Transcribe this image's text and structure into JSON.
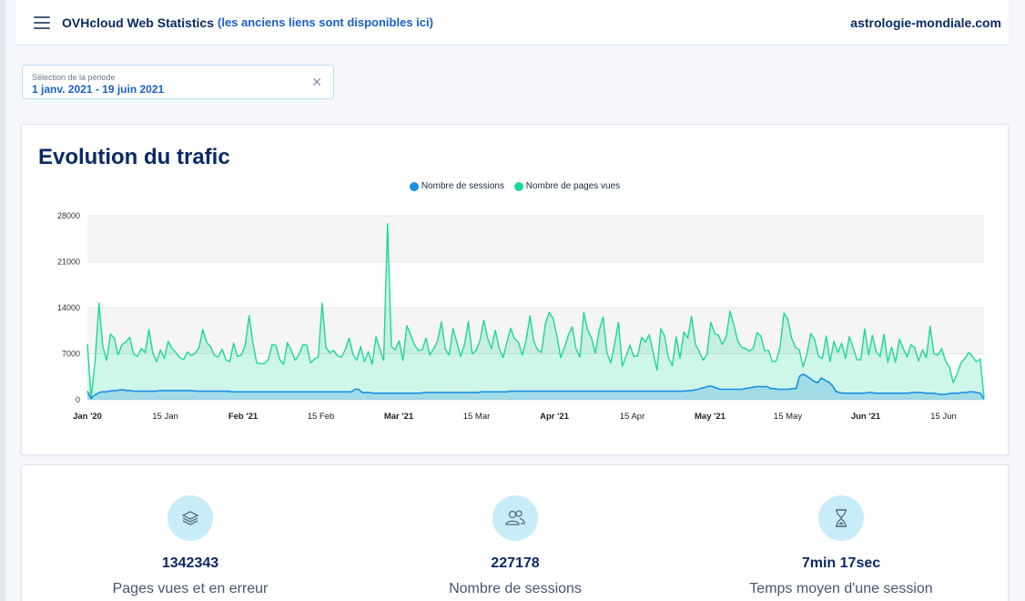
{
  "header": {
    "menu_icon": "hamburger-menu-icon",
    "title": "OVHcloud Web Statistics",
    "legacy_link": "(les anciens liens sont disponibles ici)",
    "site": "astrologie-mondiale.com"
  },
  "period": {
    "label": "Sélection de la période",
    "value": "1 janv. 2021 - 19 juin 2021",
    "clear_icon": "close-icon"
  },
  "chart_data": {
    "type": "area",
    "title": "Evolution du trafic",
    "legend_position": "top-center",
    "grid": true,
    "ylim": [
      0,
      28000
    ],
    "y_ticks": [
      "28000",
      "21000",
      "14000",
      "7000",
      "0"
    ],
    "x_tick_labels": [
      {
        "label": "Jan '20",
        "bold": true
      },
      {
        "label": "15 Jan",
        "bold": false
      },
      {
        "label": "Feb '21",
        "bold": true
      },
      {
        "label": "15 Feb",
        "bold": false
      },
      {
        "label": "Mar '21",
        "bold": true
      },
      {
        "label": "15 Mar",
        "bold": false
      },
      {
        "label": "Apr '21",
        "bold": true
      },
      {
        "label": "15 Apr",
        "bold": false
      },
      {
        "label": "May '21",
        "bold": true
      },
      {
        "label": "15 May",
        "bold": false
      },
      {
        "label": "Jun '21",
        "bold": true
      },
      {
        "label": "15 Jun",
        "bold": false
      }
    ],
    "series": [
      {
        "name": "Nombre de sessions",
        "color": "#1a8fe3",
        "values": [
          1300,
          200,
          700,
          1000,
          1200,
          1200,
          1300,
          1400,
          1400,
          1500,
          1500,
          1400,
          1400,
          1300,
          1300,
          1300,
          1300,
          1300,
          1300,
          1300,
          1400,
          1400,
          1400,
          1400,
          1400,
          1400,
          1400,
          1400,
          1400,
          1400,
          1300,
          1300,
          1300,
          1300,
          1300,
          1300,
          1300,
          1300,
          1300,
          1300,
          1200,
          1200,
          1200,
          1200,
          1200,
          1200,
          1200,
          1200,
          1200,
          1200,
          1200,
          1200,
          1200,
          1200,
          1200,
          1200,
          1200,
          1200,
          1200,
          1200,
          1200,
          1200,
          1200,
          1200,
          1200,
          1200,
          1200,
          1200,
          1200,
          1200,
          1200,
          1200,
          1200,
          1200,
          1600,
          1600,
          1100,
          1100,
          1100,
          1000,
          1000,
          1000,
          1000,
          1000,
          1000,
          1000,
          1000,
          1000,
          1000,
          1000,
          1000,
          1000,
          1000,
          1100,
          1100,
          1100,
          1100,
          1100,
          1100,
          1100,
          1100,
          1100,
          1100,
          1100,
          1100,
          1100,
          1100,
          1100,
          1100,
          1200,
          1200,
          1200,
          1200,
          1200,
          1200,
          1200,
          1200,
          1300,
          1300,
          1300,
          1300,
          1300,
          1300,
          1300,
          1300,
          1300,
          1300,
          1300,
          1300,
          1300,
          1300,
          1300,
          1300,
          1300,
          1300,
          1300,
          1300,
          1300,
          1300,
          1300,
          1300,
          1300,
          1300,
          1300,
          1300,
          1300,
          1300,
          1300,
          1300,
          1300,
          1300,
          1300,
          1300,
          1300,
          1300,
          1300,
          1300,
          1300,
          1300,
          1300,
          1300,
          1300,
          1300,
          1300,
          1300,
          1300,
          1400,
          1400,
          1500,
          1600,
          1800,
          1900,
          2100,
          2000,
          1800,
          1600,
          1600,
          1600,
          1600,
          1600,
          1600,
          1600,
          1700,
          1800,
          1900,
          2000,
          2000,
          2000,
          2000,
          1700,
          1700,
          1600,
          1600,
          1600,
          1600,
          1700,
          1700,
          3600,
          3900,
          3600,
          3200,
          2800,
          2600,
          3300,
          3000,
          2700,
          2200,
          1300,
          1100,
          1000,
          1000,
          1000,
          1000,
          1000,
          1000,
          1000,
          1100,
          1100,
          1000,
          1000,
          1000,
          1000,
          1000,
          1000,
          1000,
          1000,
          1000,
          1000,
          1100,
          1100,
          1100,
          1100,
          1000,
          1000,
          1000,
          900,
          800,
          800,
          900,
          1000,
          1000,
          1000,
          1100,
          1100,
          1200,
          1200,
          1100,
          1000,
          100
        ]
      },
      {
        "name": "Nombre de pages vues",
        "color": "#1ed79a",
        "values": [
          8500,
          300,
          6000,
          14700,
          8200,
          6000,
          10000,
          9400,
          6800,
          8400,
          8800,
          9500,
          7000,
          6600,
          7800,
          7200,
          10700,
          7100,
          5800,
          7600,
          6300,
          8900,
          7800,
          7200,
          6400,
          6100,
          7300,
          6700,
          7100,
          7900,
          10700,
          8700,
          8100,
          6800,
          6500,
          7700,
          6100,
          5800,
          8600,
          6600,
          6800,
          8200,
          12800,
          8700,
          5600,
          5500,
          5500,
          6100,
          8400,
          8300,
          6100,
          5400,
          8700,
          7500,
          6000,
          6900,
          8400,
          8300,
          5600,
          6200,
          6500,
          14700,
          7900,
          7200,
          7500,
          6700,
          6500,
          7600,
          9400,
          7000,
          6000,
          8100,
          5800,
          7300,
          5400,
          9600,
          7700,
          6000,
          26800,
          8100,
          7600,
          9000,
          6000,
          11300,
          9900,
          8400,
          7500,
          7600,
          9400,
          6800,
          7800,
          8900,
          11900,
          7700,
          6800,
          10800,
          8800,
          6600,
          8400,
          11900,
          7000,
          7500,
          9000,
          12100,
          9400,
          7800,
          10600,
          7900,
          6400,
          8700,
          10900,
          9300,
          8800,
          6800,
          9000,
          12800,
          8900,
          7600,
          7200,
          11500,
          13300,
          12400,
          9700,
          6400,
          8000,
          9900,
          11100,
          7700,
          6500,
          13300,
          10600,
          9400,
          7100,
          10600,
          12600,
          7200,
          5600,
          8500,
          11800,
          5100,
          6700,
          8300,
          6600,
          6700,
          9500,
          8800,
          9900,
          7300,
          4500,
          10800,
          9700,
          6400,
          5200,
          9600,
          6300,
          10300,
          9400,
          12700,
          8500,
          7300,
          6000,
          6900,
          11800,
          10100,
          9800,
          8400,
          9600,
          13500,
          11400,
          9000,
          8000,
          7800,
          7400,
          7800,
          10200,
          9700,
          7500,
          7500,
          5800,
          5900,
          8000,
          13200,
          12300,
          9400,
          8000,
          7600,
          5000,
          7100,
          10100,
          9100,
          6600,
          6300,
          9700,
          5800,
          8900,
          7200,
          8600,
          6300,
          9600,
          7900,
          6100,
          6100,
          10800,
          6800,
          9800,
          7300,
          6600,
          10000,
          5700,
          8000,
          5700,
          9200,
          7800,
          6500,
          8400,
          7900,
          5900,
          7600,
          6400,
          11200,
          7000,
          6800,
          7800,
          5900,
          5000,
          2600,
          3900,
          5600,
          6300,
          7200,
          6600,
          5800,
          6200,
          300
        ]
      }
    ]
  },
  "stats": [
    {
      "icon": "stack-layers-icon",
      "value": "1342343",
      "label": "Pages vues et en erreur"
    },
    {
      "icon": "users-icon",
      "value": "227178",
      "label": "Nombre de sessions"
    },
    {
      "icon": "hourglass-icon",
      "value": "7min 17sec",
      "label": "Temps moyen d'une session"
    }
  ]
}
